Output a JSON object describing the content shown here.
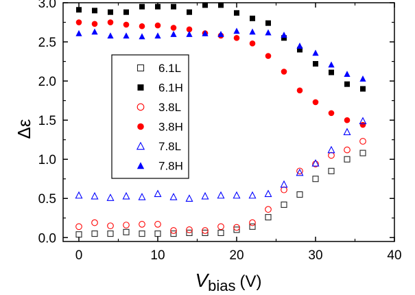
{
  "chart_data": {
    "type": "scatter",
    "xlabel_main": "V",
    "xlabel_sub": "bias",
    "xlabel_unit": "(V)",
    "ylabel": "Δε",
    "xlim": [
      -2,
      40
    ],
    "ylim": [
      -0.05,
      3.0
    ],
    "x_ticks": [
      0,
      10,
      20,
      30,
      40
    ],
    "x_tick_labels": [
      "0",
      "10",
      "20",
      "30",
      "40"
    ],
    "y_ticks": [
      0.0,
      0.5,
      1.0,
      1.5,
      2.0,
      2.5,
      3.0
    ],
    "y_tick_labels": [
      "0.0",
      "0.5",
      "1.0",
      "1.5",
      "2.0",
      "2.5",
      "3.0"
    ],
    "grid": false,
    "legend_position": "center-left",
    "series": [
      {
        "name": "6.1L",
        "marker": "square",
        "filled": false,
        "color": "#222222",
        "x": [
          0,
          2,
          4,
          6,
          8,
          10,
          12,
          14,
          16,
          18,
          20,
          22,
          24,
          26,
          28,
          30,
          32,
          34,
          36
        ],
        "y": [
          0.04,
          0.05,
          0.05,
          0.07,
          0.05,
          0.05,
          0.05,
          0.06,
          0.06,
          0.06,
          0.1,
          0.14,
          0.26,
          0.42,
          0.55,
          0.75,
          0.85,
          1.0,
          1.08
        ]
      },
      {
        "name": "6.1H",
        "marker": "square",
        "filled": true,
        "color": "#000000",
        "x": [
          0,
          2,
          4,
          6,
          8,
          10,
          12,
          14,
          16,
          18,
          20,
          22,
          24,
          26,
          28,
          30,
          32,
          34,
          36
        ],
        "y": [
          2.91,
          2.9,
          2.88,
          2.88,
          2.95,
          2.95,
          2.95,
          2.88,
          2.97,
          2.97,
          2.87,
          2.8,
          2.74,
          2.55,
          2.4,
          2.22,
          2.11,
          1.96,
          1.9
        ]
      },
      {
        "name": "3.8L",
        "marker": "circle",
        "filled": false,
        "color": "#ff0000",
        "x": [
          0,
          2,
          4,
          6,
          8,
          10,
          12,
          14,
          16,
          18,
          20,
          22,
          24,
          26,
          28,
          30,
          32,
          34,
          36
        ],
        "y": [
          0.14,
          0.19,
          0.15,
          0.16,
          0.17,
          0.17,
          0.09,
          0.1,
          0.09,
          0.14,
          0.13,
          0.19,
          0.36,
          0.61,
          0.85,
          0.94,
          1.05,
          1.12,
          1.23
        ]
      },
      {
        "name": "3.8H",
        "marker": "circle",
        "filled": true,
        "color": "#ff0000",
        "x": [
          0,
          2,
          4,
          6,
          8,
          10,
          12,
          14,
          16,
          18,
          20,
          22,
          24,
          26,
          28,
          30,
          32,
          34,
          36
        ],
        "y": [
          2.75,
          2.73,
          2.75,
          2.72,
          2.7,
          2.71,
          2.68,
          2.66,
          2.61,
          2.58,
          2.55,
          2.48,
          2.32,
          2.12,
          1.88,
          1.73,
          1.59,
          1.5,
          1.44
        ]
      },
      {
        "name": "7.8L",
        "marker": "triangle",
        "filled": false,
        "color": "#0000ff",
        "x": [
          0,
          2,
          4,
          6,
          8,
          10,
          12,
          14,
          16,
          18,
          20,
          22,
          24,
          26,
          28,
          30,
          32,
          34,
          36
        ],
        "y": [
          0.54,
          0.53,
          0.51,
          0.53,
          0.52,
          0.56,
          0.52,
          0.5,
          0.53,
          0.54,
          0.54,
          0.54,
          0.56,
          0.68,
          0.83,
          0.95,
          1.12,
          1.35,
          1.49
        ]
      },
      {
        "name": "7.8H",
        "marker": "triangle",
        "filled": true,
        "color": "#0000ff",
        "x": [
          0,
          2,
          4,
          6,
          8,
          10,
          12,
          14,
          16,
          18,
          20,
          22,
          24,
          26,
          28,
          30,
          32,
          34,
          36
        ],
        "y": [
          2.61,
          2.63,
          2.58,
          2.58,
          2.57,
          2.58,
          2.6,
          2.6,
          2.61,
          2.6,
          2.64,
          2.63,
          2.62,
          2.59,
          2.45,
          2.36,
          2.21,
          2.09,
          2.03
        ]
      }
    ]
  }
}
